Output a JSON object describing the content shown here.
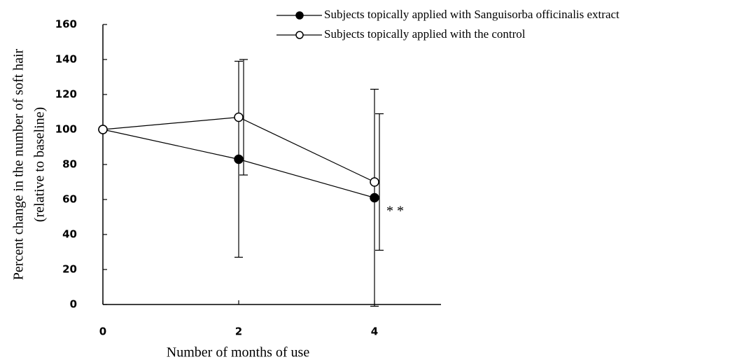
{
  "chart_data": {
    "type": "line",
    "x_label": "Number of months of use",
    "y_label": [
      "Percent change in the number of soft hair",
      "(relative to baseline)"
    ],
    "x": [
      0,
      2,
      4
    ],
    "xlim": [
      0,
      5
    ],
    "xticks": [
      0,
      2,
      4
    ],
    "ylim": [
      0,
      160
    ],
    "yticks": [
      0,
      20,
      40,
      60,
      80,
      100,
      120,
      140,
      160
    ],
    "series": [
      {
        "name": "Subjects topically applied with Sanguisorba officinalis extract",
        "color": "#000000",
        "marker": "filled",
        "values": [
          100,
          83,
          61
        ],
        "errors": [
          0,
          56,
          62
        ]
      },
      {
        "name": "Subjects topically applied with the control",
        "color": "#000000",
        "marker": "open",
        "values": [
          100,
          107,
          70
        ],
        "errors": [
          0,
          33,
          39
        ]
      }
    ],
    "annotation": "* *",
    "legend": "top-right"
  }
}
